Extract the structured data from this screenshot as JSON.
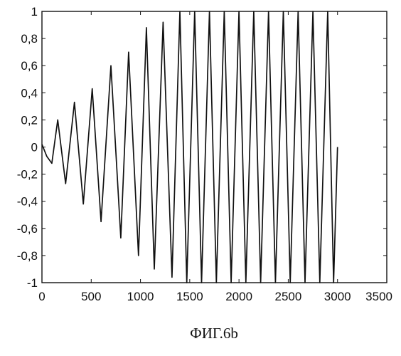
{
  "chart_data": {
    "type": "line",
    "title": "",
    "xlabel": "",
    "ylabel": "",
    "xlim": [
      0,
      3500
    ],
    "ylim": [
      -1,
      1
    ],
    "x_ticks": [
      0,
      500,
      1000,
      1500,
      2000,
      2500,
      3000,
      3500
    ],
    "x_tick_labels": [
      "0",
      "500",
      "1000",
      "1500",
      "2000",
      "2500",
      "3000",
      "3500"
    ],
    "y_ticks": [
      -1,
      -0.8,
      -0.6,
      -0.4,
      -0.2,
      0,
      0.2,
      0.4,
      0.6,
      0.8,
      1
    ],
    "y_tick_labels": [
      "-1",
      "-0,8",
      "-0,6",
      "-0,4",
      "-0,2",
      "0",
      "0,2",
      "0,4",
      "0,6",
      "0,8",
      "1"
    ],
    "grid": false,
    "series": [
      {
        "points": [
          [
            0,
            0.02
          ],
          [
            50,
            -0.07
          ],
          [
            100,
            -0.12
          ],
          [
            160,
            0.2
          ],
          [
            240,
            -0.27
          ],
          [
            330,
            0.33
          ],
          [
            420,
            -0.42
          ],
          [
            510,
            0.43
          ],
          [
            600,
            -0.55
          ],
          [
            700,
            0.6
          ],
          [
            800,
            -0.67
          ],
          [
            880,
            0.7
          ],
          [
            980,
            -0.8
          ],
          [
            1060,
            0.88
          ],
          [
            1140,
            -0.9
          ],
          [
            1230,
            0.92
          ],
          [
            1320,
            -0.96
          ],
          [
            1400,
            1.0
          ],
          [
            1470,
            -1.0
          ],
          [
            1550,
            1.0
          ],
          [
            1620,
            -1.0
          ],
          [
            1700,
            1.0
          ],
          [
            1770,
            -1.0
          ],
          [
            1850,
            1.0
          ],
          [
            1920,
            -1.0
          ],
          [
            2000,
            1.0
          ],
          [
            2070,
            -1.0
          ],
          [
            2150,
            1.0
          ],
          [
            2220,
            -1.0
          ],
          [
            2300,
            1.0
          ],
          [
            2370,
            -1.0
          ],
          [
            2450,
            1.0
          ],
          [
            2520,
            -1.0
          ],
          [
            2600,
            1.0
          ],
          [
            2670,
            -1.0
          ],
          [
            2750,
            1.0
          ],
          [
            2820,
            -1.0
          ],
          [
            2900,
            1.0
          ],
          [
            2960,
            -1.0
          ],
          [
            3000,
            0.0
          ]
        ]
      }
    ],
    "caption": "ФИГ.6b"
  }
}
